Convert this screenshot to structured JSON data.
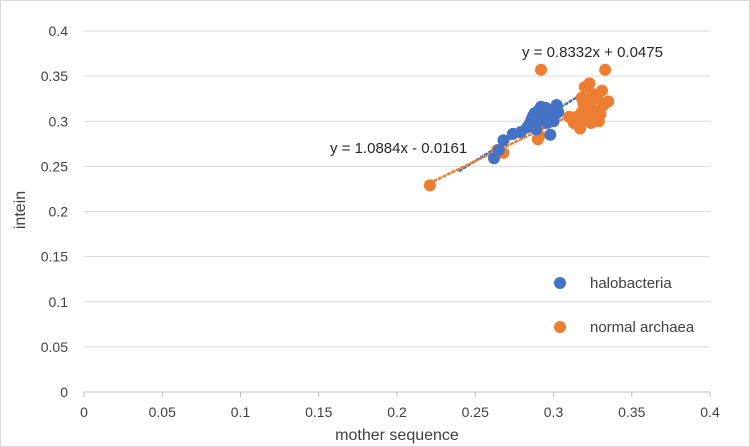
{
  "chart_data": {
    "type": "scatter",
    "xlabel": "mother sequence",
    "ylabel": "intein",
    "xlim": [
      0,
      0.4
    ],
    "ylim": [
      0,
      0.4
    ],
    "x_ticks": [
      "0",
      "0.05",
      "0.1",
      "0.15",
      "0.2",
      "0.25",
      "0.3",
      "0.35",
      "0.4"
    ],
    "y_ticks": [
      "0",
      "0.05",
      "0.1",
      "0.15",
      "0.2",
      "0.25",
      "0.3",
      "0.35",
      "0.4"
    ],
    "grid": "horizontal",
    "legend_position": "right",
    "series": [
      {
        "name": "halobacteria",
        "color": "#4472C4",
        "trendline": {
          "label": "y = 1.0884x - 0.0161",
          "slope": 1.0884,
          "intercept": -0.0161,
          "x_range": [
            0.24,
            0.322
          ]
        },
        "points": [
          [
            0.262,
            0.259
          ],
          [
            0.265,
            0.268
          ],
          [
            0.268,
            0.279
          ],
          [
            0.274,
            0.286
          ],
          [
            0.279,
            0.288
          ],
          [
            0.283,
            0.293
          ],
          [
            0.285,
            0.298
          ],
          [
            0.286,
            0.302
          ],
          [
            0.287,
            0.306
          ],
          [
            0.288,
            0.309
          ],
          [
            0.289,
            0.296
          ],
          [
            0.29,
            0.311
          ],
          [
            0.291,
            0.313
          ],
          [
            0.292,
            0.316
          ],
          [
            0.293,
            0.301
          ],
          [
            0.294,
            0.312
          ],
          [
            0.295,
            0.306
          ],
          [
            0.296,
            0.298
          ],
          [
            0.297,
            0.309
          ],
          [
            0.298,
            0.285
          ],
          [
            0.299,
            0.312
          ],
          [
            0.3,
            0.305
          ],
          [
            0.302,
            0.318
          ],
          [
            0.303,
            0.31
          ],
          [
            0.289,
            0.291
          ],
          [
            0.292,
            0.304
          ],
          [
            0.295,
            0.315
          ],
          [
            0.3,
            0.3
          ],
          [
            0.286,
            0.3
          ],
          [
            0.298,
            0.308
          ]
        ]
      },
      {
        "name": "normal archaea",
        "color": "#ED7D31",
        "trendline": {
          "label": "y = 0.8332x + 0.0475",
          "slope": 0.8332,
          "intercept": 0.0475,
          "x_range": [
            0.221,
            0.322
          ]
        },
        "points": [
          [
            0.221,
            0.229
          ],
          [
            0.264,
            0.268
          ],
          [
            0.268,
            0.265
          ],
          [
            0.29,
            0.28
          ],
          [
            0.291,
            0.284
          ],
          [
            0.292,
            0.357
          ],
          [
            0.31,
            0.305
          ],
          [
            0.312,
            0.302
          ],
          [
            0.313,
            0.298
          ],
          [
            0.315,
            0.305
          ],
          [
            0.316,
            0.302
          ],
          [
            0.317,
            0.292
          ],
          [
            0.318,
            0.31
          ],
          [
            0.319,
            0.32
          ],
          [
            0.32,
            0.338
          ],
          [
            0.321,
            0.323
          ],
          [
            0.322,
            0.301
          ],
          [
            0.323,
            0.342
          ],
          [
            0.324,
            0.315
          ],
          [
            0.325,
            0.33
          ],
          [
            0.326,
            0.307
          ],
          [
            0.327,
            0.303
          ],
          [
            0.328,
            0.325
          ],
          [
            0.329,
            0.312
          ],
          [
            0.33,
            0.308
          ],
          [
            0.331,
            0.334
          ],
          [
            0.332,
            0.318
          ],
          [
            0.333,
            0.357
          ],
          [
            0.335,
            0.322
          ],
          [
            0.32,
            0.305
          ],
          [
            0.324,
            0.298
          ],
          [
            0.318,
            0.326
          ],
          [
            0.312,
            0.304
          ],
          [
            0.329,
            0.3
          ]
        ]
      }
    ]
  }
}
